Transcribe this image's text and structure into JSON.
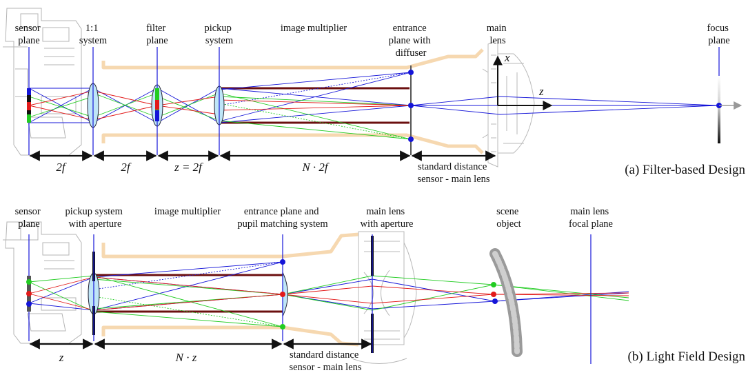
{
  "panel_a": {
    "caption": "(a) Filter-based Design",
    "labels": {
      "sensor_plane": [
        "sensor",
        "plane"
      ],
      "system_1to1": [
        "1:1",
        "system"
      ],
      "filter_plane": [
        "filter",
        "plane"
      ],
      "pickup_system": [
        "pickup",
        "system"
      ],
      "image_multiplier": [
        "image multiplier"
      ],
      "entrance_plane": [
        "entrance",
        "plane with",
        "diffuser"
      ],
      "main_lens": [
        "main",
        "lens"
      ],
      "focus_plane": [
        "focus",
        "plane"
      ],
      "standard_distance": [
        "standard distance",
        "sensor - main lens"
      ]
    },
    "axes": {
      "x": "x",
      "z": "z"
    },
    "dimensions": [
      "2f",
      "2f",
      "z = 2f",
      "N · 2f"
    ]
  },
  "panel_b": {
    "caption": "(b) Light Field Design",
    "labels": {
      "sensor_plane": [
        "sensor",
        "plane"
      ],
      "pickup_aperture": [
        "pickup system",
        "with aperture"
      ],
      "image_multiplier": [
        "image multiplier"
      ],
      "entrance_pupil": [
        "entrance plane and",
        "pupil matching system"
      ],
      "main_lens_aperture": [
        "main lens",
        "with aperture"
      ],
      "scene_object": [
        "scene",
        "object"
      ],
      "focal_plane": [
        "main lens",
        "focal plane"
      ],
      "standard_distance": [
        "standard distance",
        "sensor - main lens"
      ]
    },
    "dimensions": [
      "z",
      "N · z"
    ]
  },
  "colors": {
    "blue": "#1515d8",
    "green": "#22cc22",
    "red": "#e21a1a",
    "mirror": "#6b0f0f",
    "housing": "#f6d8b0",
    "lens_fill": "#bfe6f7",
    "gray": "#8a8a8a"
  }
}
